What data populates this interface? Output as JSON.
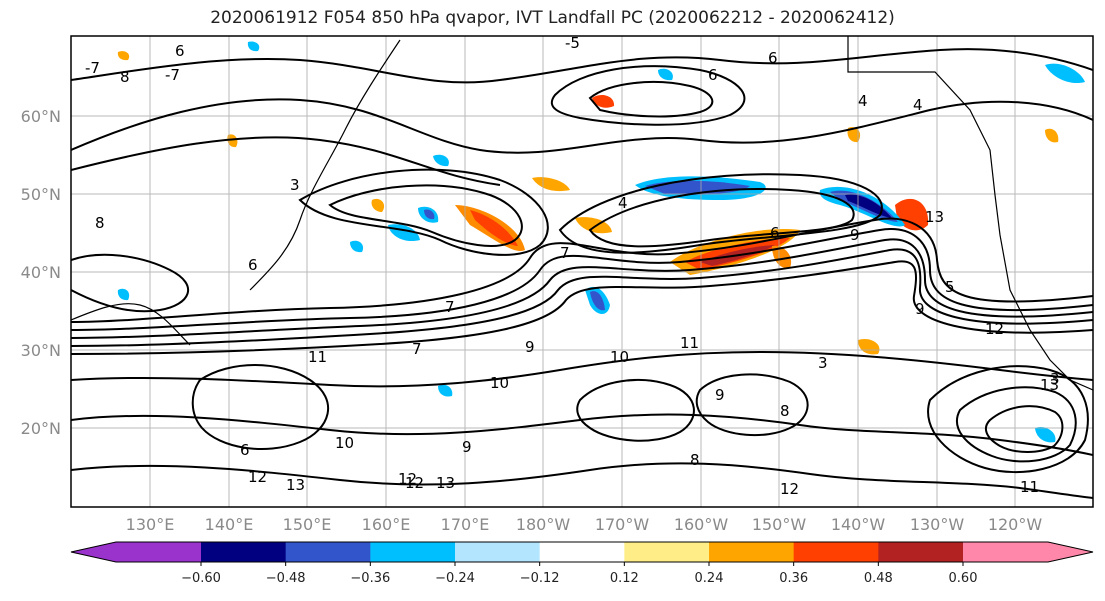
{
  "title": "2020061912 F054 850 hPa qvapor, IVT Landfall PC (2020062212 - 2020062412)",
  "lat_labels": [
    "60°N",
    "50°N",
    "40°N",
    "30°N",
    "20°N"
  ],
  "lon_labels": [
    "130°E",
    "140°E",
    "150°E",
    "160°E",
    "170°E",
    "180°W",
    "170°W",
    "160°W",
    "150°W",
    "140°W",
    "130°W",
    "120°W"
  ],
  "colorbar": {
    "colors": [
      "#9933cc",
      "#000080",
      "#3355cc",
      "#00bfff",
      "#b3e5ff",
      "#ffffff",
      "#ffee88",
      "#ffa500",
      "#ff4000",
      "#b22222",
      "#ff88aa"
    ],
    "tick_labels": [
      "−0.60",
      "−0.48",
      "−0.36",
      "−0.24",
      "−0.12",
      "0.12",
      "0.24",
      "0.36",
      "0.48",
      "0.60"
    ]
  },
  "contour_labels": [
    {
      "text": "-7"
    },
    {
      "text": "8"
    },
    {
      "text": "-7"
    },
    {
      "text": "6"
    },
    {
      "text": "-5"
    },
    {
      "text": "6"
    },
    {
      "text": "6"
    },
    {
      "text": "4"
    },
    {
      "text": "4"
    },
    {
      "text": "4"
    },
    {
      "text": "3"
    },
    {
      "text": "8"
    },
    {
      "text": "7"
    },
    {
      "text": "6"
    },
    {
      "text": "7"
    },
    {
      "text": "9"
    },
    {
      "text": "6"
    },
    {
      "text": "13"
    },
    {
      "text": "5"
    },
    {
      "text": "9"
    },
    {
      "text": "12"
    },
    {
      "text": "7"
    },
    {
      "text": "11"
    },
    {
      "text": "9"
    },
    {
      "text": "10"
    },
    {
      "text": "10"
    },
    {
      "text": "11"
    },
    {
      "text": "3"
    },
    {
      "text": "8"
    },
    {
      "text": "13"
    },
    {
      "text": "9"
    },
    {
      "text": "8"
    },
    {
      "text": "9"
    },
    {
      "text": "12"
    },
    {
      "text": "13"
    },
    {
      "text": "12"
    },
    {
      "text": "6"
    },
    {
      "text": "10"
    },
    {
      "text": "12"
    },
    {
      "text": "13"
    },
    {
      "text": "11"
    },
    {
      "text": "3"
    },
    {
      "text": "12"
    }
  ]
}
